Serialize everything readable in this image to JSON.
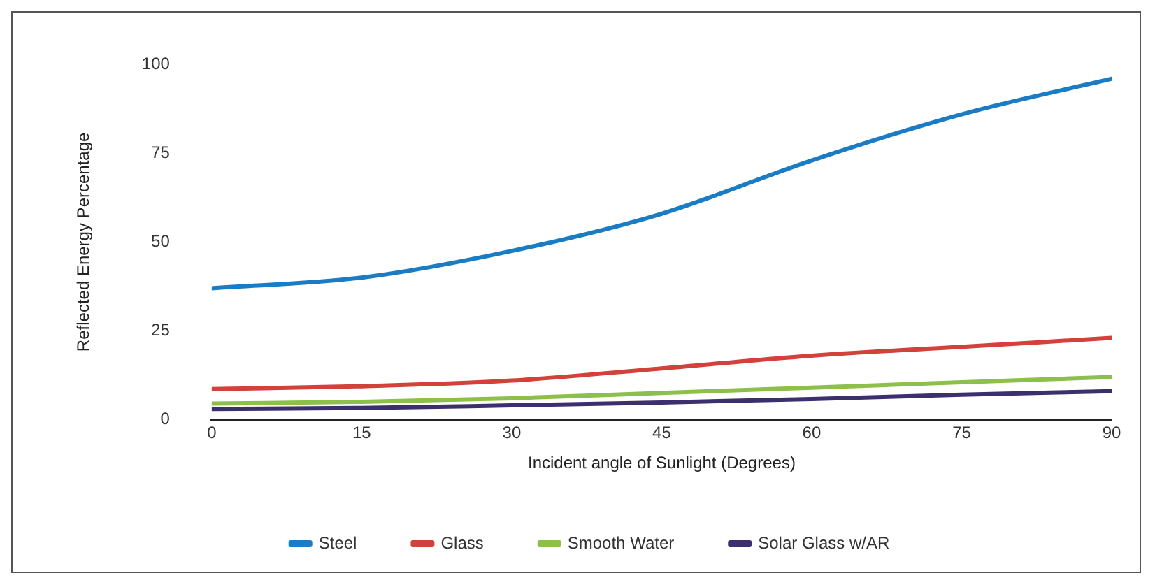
{
  "chart_data": {
    "type": "line",
    "xlabel": "Incident angle of Sunlight (Degrees)",
    "ylabel": "Reflected Energy Percentage",
    "x": [
      0,
      15,
      30,
      45,
      60,
      75,
      90
    ],
    "xlim": [
      0,
      90
    ],
    "xticks": [
      0,
      15,
      30,
      45,
      60,
      75,
      90
    ],
    "ylim": [
      0,
      100
    ],
    "yticks": [
      0,
      25,
      50,
      75,
      100
    ],
    "series": [
      {
        "name": "Steel",
        "color": "#1a7cc4",
        "values": [
          37,
          40,
          47.5,
          58,
          73,
          86,
          96
        ]
      },
      {
        "name": "Glass",
        "color": "#d2413a",
        "values": [
          8.6,
          9.4,
          11,
          14.4,
          18,
          20.5,
          23
        ]
      },
      {
        "name": "Smooth Water",
        "color": "#8cc04a",
        "values": [
          4.5,
          5,
          6,
          7.5,
          9,
          10.5,
          12
        ]
      },
      {
        "name": "Solar Glass w/AR",
        "color": "#3c2f6e",
        "values": [
          3,
          3.3,
          4,
          4.8,
          5.8,
          7,
          8
        ]
      }
    ],
    "grid": false,
    "legend": "bottom",
    "marker": "none",
    "line_style": "solid"
  }
}
